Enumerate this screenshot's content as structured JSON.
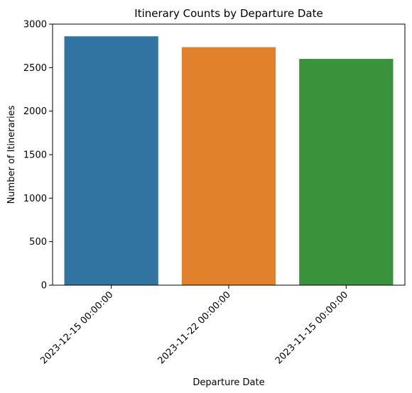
{
  "chart_data": {
    "type": "bar",
    "title": "Itinerary Counts by Departure Date",
    "xlabel": "Departure Date",
    "ylabel": "Number of Itineraries",
    "categories": [
      "2023-12-15 00:00:00",
      "2023-11-22 00:00:00",
      "2023-11-15 00:00:00"
    ],
    "values": [
      2860,
      2735,
      2600
    ],
    "colors": [
      "#3274a1",
      "#e1812c",
      "#3a923a"
    ],
    "ylim": [
      0,
      3000
    ],
    "yticks": [
      0,
      500,
      1000,
      1500,
      2000,
      2500,
      3000
    ],
    "grid": false,
    "legend": "none"
  }
}
